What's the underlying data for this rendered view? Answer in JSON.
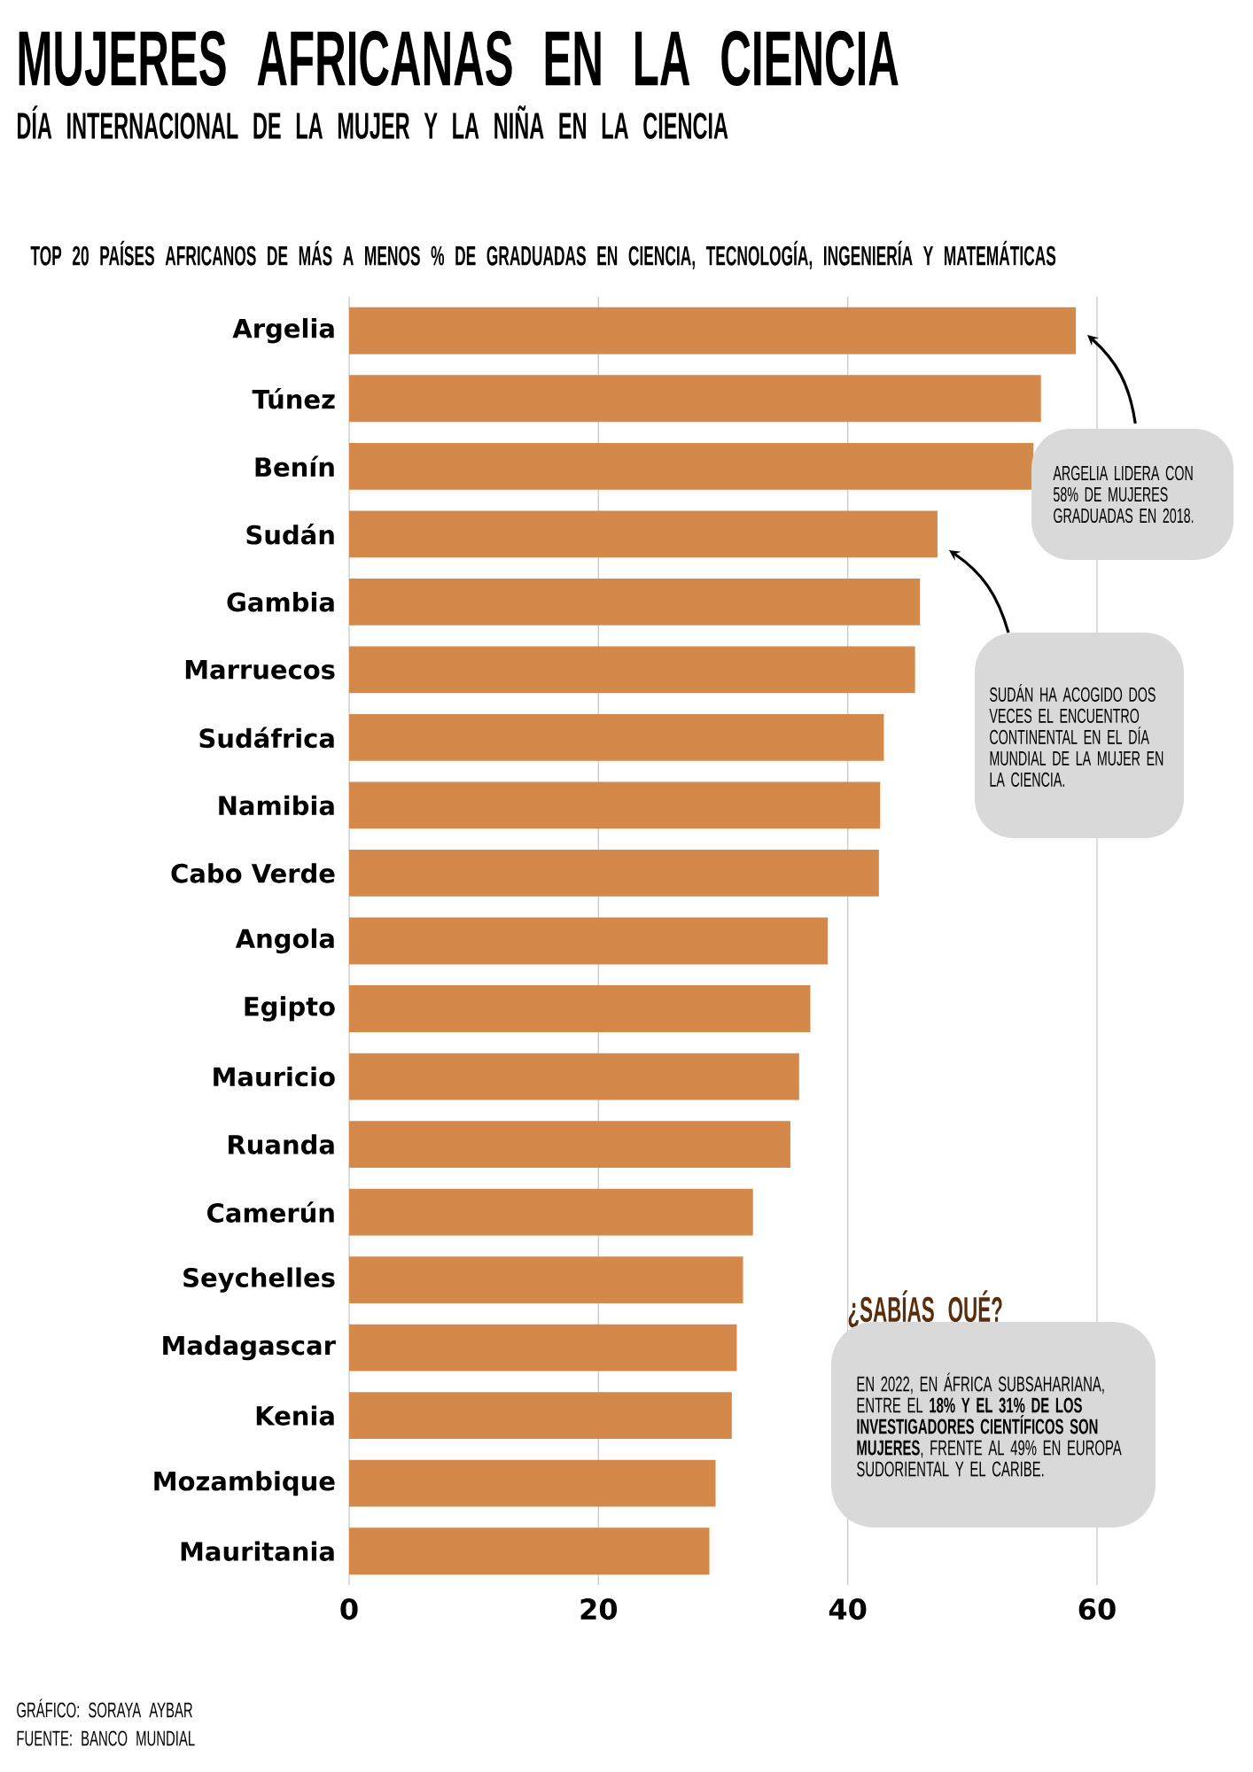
{
  "chart_data": {
    "type": "bar",
    "orientation": "horizontal",
    "title": "MUJERES AFRICANAS EN LA CIENCIA",
    "subtitle": "DÍA INTERNACIONAL DE LA MUJER Y LA NIÑA EN LA CIENCIA",
    "categories": [
      "Argelia",
      "Túnez",
      "Benín",
      "Sudán",
      "Gambia",
      "Marruecos",
      "Sudáfrica",
      "Namibia",
      "Cabo Verde",
      "Angola",
      "Egipto",
      "Mauricio",
      "Ruanda",
      "Camerún",
      "Seychelles",
      "Madagascar",
      "Kenia",
      "Mozambique",
      "Mauritania"
    ],
    "values": [
      58.3,
      55.5,
      54.9,
      47.2,
      45.8,
      45.4,
      42.9,
      42.6,
      42.5,
      38.4,
      37.0,
      36.1,
      35.4,
      32.4,
      31.6,
      31.1,
      30.7,
      29.4,
      28.9
    ],
    "color": "#d4894a",
    "xlim": [
      0,
      60
    ],
    "xticks": [
      0,
      20,
      40,
      60
    ],
    "grid": "x",
    "annotations": [
      "TOP 20 PAÍSES AFRICANOS DE MÁS A MENOS % DE GRADUADAS EN CIENCIA, TECNOLOGÍA, INGENIERÍA Y MATEMÁTICAS",
      "ARGELIA LIDERA CON 58% DE MUJERES GRADUADAS EN 2018.",
      "SUDÁN HA ACOGIDO DOS VECES EL ENCUENTRO CONTINENTAL EN EL DÍA MUNDIAL DE LA MUJER EN LA CIENCIA.",
      "¿SABÍAS QUÉ?",
      "EN 2022, EN ÁFRICA SUBSAHARIANA, ENTRE EL **18% Y EL 31% DE LOS INVESTIGADORES CIENTÍFICOS SON MUJERES**, FRENTE AL 49% EN EUROPA SUDORIENTAL Y EL CARIBE.",
      "GRÁFICO: SORAYA AYBAR",
      "FUENTE: BANCO MUNDIAL"
    ]
  }
}
